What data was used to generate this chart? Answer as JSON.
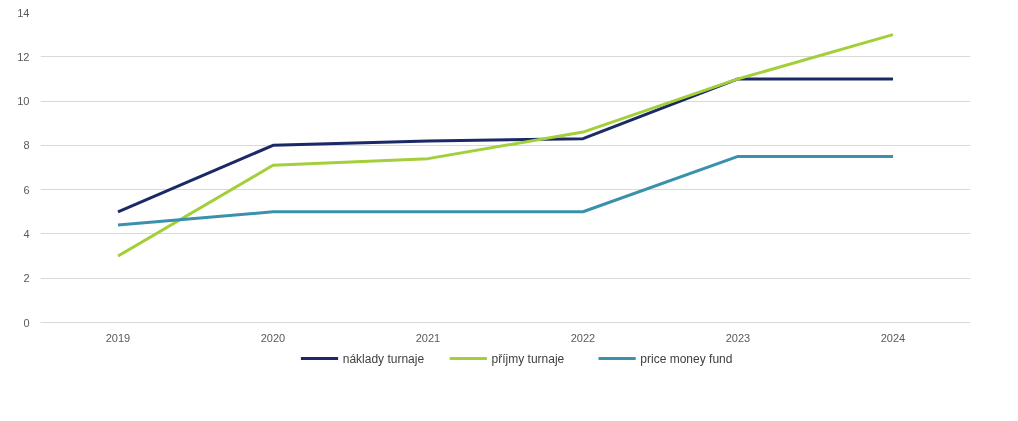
{
  "chart_data": {
    "type": "line",
    "categories": [
      "2019",
      "2020",
      "2021",
      "2022",
      "2023",
      "2024"
    ],
    "series": [
      {
        "name": "náklady turnaje",
        "color": "#1b2a66",
        "values": [
          5,
          8,
          8.2,
          8.3,
          11,
          11
        ]
      },
      {
        "name": "příjmy turnaje",
        "color": "#a3cf3a",
        "values": [
          3,
          7.1,
          7.4,
          8.6,
          11,
          13
        ]
      },
      {
        "name": "price money fund",
        "color": "#3a91ab",
        "values": [
          4.4,
          5,
          5,
          5,
          7.5,
          7.5
        ]
      }
    ],
    "ylim": [
      0,
      14
    ],
    "yticks": [
      0,
      2,
      4,
      6,
      8,
      10,
      12,
      14
    ],
    "grid": "y",
    "legend": "bottom",
    "marker": "none",
    "line_style": "solid"
  }
}
